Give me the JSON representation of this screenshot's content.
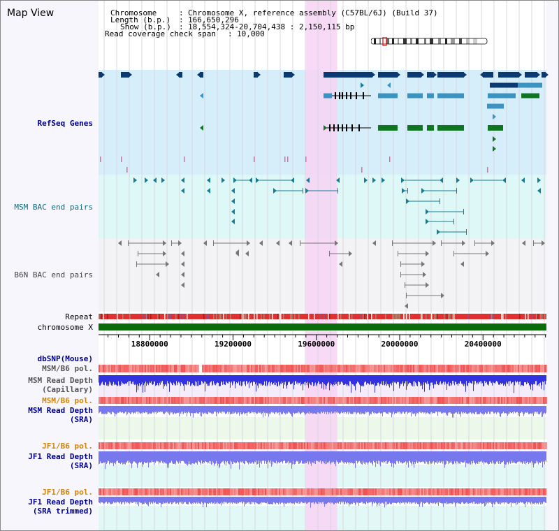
{
  "app": {
    "title": "Map View"
  },
  "info": {
    "chromosome_key": "Chromosome",
    "chromosome_val": "Chromosome X, reference assembly (C57BL/6J) (Build 37)",
    "length_key": "Length (b.p.)",
    "length_val": "166,650,296",
    "show_key": "Show (b.p.)",
    "show_val": "18,554,324-20,704,438 : 2,150,115 bp",
    "coverage_key": "Read coverage check span",
    "coverage_val": "10,000",
    "sep": ":"
  },
  "tracks": {
    "refseq": "RefSeq Genes",
    "msm_bac": "MSM BAC end pairs",
    "b6n_bac": "B6N BAC end pairs",
    "repeat": "Repeat",
    "chromosome": "chromosome X",
    "dbsnp": "dbSNP(Mouse)",
    "msm_b6_pol_1": "MSM/B6 pol.",
    "msm_read_depth_cap_1": "MSM Read Depth",
    "msm_read_depth_cap_2": "(Capillary)",
    "msm_b6_pol_2": "MSM/B6 pol.",
    "msm_read_depth_sra_1": "MSM Read Depth",
    "msm_read_depth_sra_2": "(SRA)",
    "jf1_b6_pol_1": "JF1/B6 pol.",
    "jf1_read_depth_sra_1": "JF1 Read Depth",
    "jf1_read_depth_sra_2": "(SRA)",
    "jf1_b6_pol_2": "JF1/B6 pol.",
    "jf1_read_depth_trim_1": "JF1 Read Depth",
    "jf1_read_depth_trim_2": "(SRA trimmed)"
  },
  "axis": {
    "start": 18554324,
    "end": 20704438,
    "ticks": [
      "18800000",
      "19200000",
      "19600000",
      "20000000",
      "20400000"
    ],
    "highlight_start": 19550000,
    "highlight_end": 19700000
  },
  "colors": {
    "highlight": "#f8d4f4",
    "refseq_bg": "#d6eefa",
    "msm_bg": "#ddf8f6",
    "b6n_bg": "#f3f3f5",
    "gene_dark": "#0b3a73",
    "gene_mid": "#3a93c1",
    "gene_green": "#0f7520",
    "bac_teal": "#177c96",
    "bac_gray": "#777777",
    "chromosome_bar": "#0a6b0a",
    "read_depth_capillary": "#3232e0",
    "read_depth_sra": "#7777ee",
    "pol_red": "#f05050"
  }
}
